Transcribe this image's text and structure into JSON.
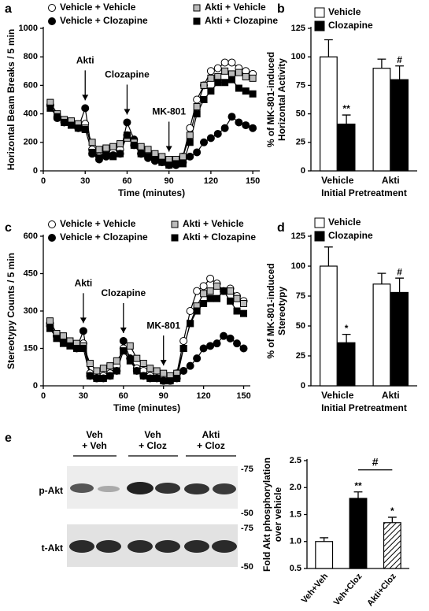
{
  "chart_data": [
    {
      "type": "line",
      "label": "a",
      "xlabel": "Time (minutes)",
      "ylabel": [
        "Horizontal Beam Breaks / 5 min"
      ],
      "x": [
        5,
        10,
        15,
        20,
        25,
        30,
        35,
        40,
        45,
        50,
        55,
        60,
        65,
        70,
        75,
        80,
        85,
        90,
        95,
        100,
        105,
        110,
        115,
        120,
        125,
        130,
        135,
        140,
        145,
        150
      ],
      "xlim": [
        0,
        155
      ],
      "xticks": [
        0,
        30,
        60,
        90,
        120,
        150
      ],
      "ylim": [
        0,
        1000
      ],
      "yticks": [
        0,
        200,
        400,
        600,
        800,
        1000
      ],
      "series": [
        {
          "name": "Vehicle + Vehicle",
          "color": "#ffffff",
          "marker": "circle",
          "values": [
            460,
            380,
            350,
            330,
            320,
            330,
            150,
            100,
            120,
            130,
            150,
            250,
            180,
            120,
            110,
            90,
            90,
            70,
            70,
            100,
            300,
            500,
            600,
            700,
            720,
            760,
            760,
            720,
            700,
            680
          ]
        },
        {
          "name": "Vehicle + Clozapine",
          "color": "#000000",
          "marker": "circle",
          "values": [
            460,
            370,
            340,
            330,
            300,
            440,
            120,
            80,
            100,
            110,
            120,
            340,
            220,
            120,
            90,
            70,
            60,
            40,
            40,
            60,
            100,
            130,
            200,
            230,
            260,
            300,
            380,
            340,
            320,
            300
          ]
        },
        {
          "name": "Akti + Vehicle",
          "color": "#bbbbbb",
          "marker": "square",
          "values": [
            480,
            400,
            360,
            350,
            330,
            300,
            200,
            150,
            160,
            170,
            190,
            230,
            200,
            170,
            150,
            120,
            100,
            80,
            80,
            100,
            250,
            450,
            600,
            650,
            660,
            700,
            680,
            690,
            660,
            650
          ]
        },
        {
          "name": "Akti + Clozapine",
          "color": "#000000",
          "marker": "square",
          "values": [
            440,
            380,
            340,
            320,
            300,
            290,
            130,
            90,
            110,
            100,
            120,
            250,
            180,
            120,
            100,
            80,
            60,
            40,
            50,
            50,
            200,
            400,
            500,
            560,
            620,
            620,
            640,
            580,
            560,
            540
          ]
        }
      ],
      "annotations": [
        {
          "text": "Akti",
          "x": 30
        },
        {
          "text": "Clozapine",
          "x": 60
        },
        {
          "text": "MK-801",
          "x": 90
        }
      ]
    },
    {
      "type": "bar",
      "label": "b",
      "xlabel": "Initial Pretreatment",
      "ylabel": [
        "% of MK-801-induced",
        "Horizontal Activity"
      ],
      "categories": [
        "Vehicle",
        "Akti"
      ],
      "ylim": [
        0,
        125
      ],
      "yticks": [
        0,
        25,
        50,
        75,
        100,
        125
      ],
      "series": [
        {
          "name": "Vehicle",
          "color": "#ffffff",
          "values": [
            100,
            90
          ],
          "errors": [
            15,
            8
          ]
        },
        {
          "name": "Clozapine",
          "color": "#000000",
          "values": [
            41,
            80
          ],
          "errors": [
            8,
            12
          ],
          "annotations": [
            "**",
            "#"
          ]
        }
      ]
    },
    {
      "type": "line",
      "label": "c",
      "xlabel": "Time (minutes)",
      "ylabel": [
        "Stereotypy Counts / 5 min"
      ],
      "x": [
        5,
        10,
        15,
        20,
        25,
        30,
        35,
        40,
        45,
        50,
        55,
        60,
        65,
        70,
        75,
        80,
        85,
        90,
        95,
        100,
        105,
        110,
        115,
        120,
        125,
        130,
        135,
        140,
        145,
        150
      ],
      "xlim": [
        0,
        155
      ],
      "xticks": [
        0,
        30,
        60,
        90,
        120,
        150
      ],
      "ylim": [
        0,
        600
      ],
      "yticks": [
        0,
        150,
        300,
        450,
        600
      ],
      "series": [
        {
          "name": "Vehicle + Vehicle",
          "color": "#ffffff",
          "marker": "circle",
          "values": [
            250,
            200,
            190,
            170,
            160,
            170,
            50,
            30,
            40,
            50,
            80,
            150,
            110,
            70,
            60,
            40,
            40,
            30,
            30,
            50,
            180,
            300,
            380,
            400,
            430,
            410,
            380,
            390,
            360,
            340
          ]
        },
        {
          "name": "Vehicle + Clozapine",
          "color": "#000000",
          "marker": "circle",
          "values": [
            240,
            200,
            180,
            170,
            150,
            220,
            40,
            30,
            30,
            40,
            60,
            180,
            110,
            60,
            40,
            30,
            30,
            20,
            20,
            30,
            60,
            80,
            110,
            150,
            160,
            170,
            200,
            190,
            170,
            150
          ]
        },
        {
          "name": "Akti + Vehicle",
          "color": "#bbbbbb",
          "marker": "square",
          "values": [
            260,
            210,
            200,
            180,
            170,
            160,
            90,
            60,
            70,
            80,
            100,
            140,
            160,
            110,
            90,
            70,
            60,
            50,
            40,
            50,
            150,
            250,
            320,
            370,
            380,
            400,
            380,
            380,
            350,
            330
          ]
        },
        {
          "name": "Akti + Clozapine",
          "color": "#000000",
          "marker": "square",
          "values": [
            230,
            190,
            170,
            160,
            150,
            150,
            40,
            30,
            30,
            40,
            60,
            140,
            100,
            60,
            40,
            30,
            30,
            20,
            20,
            30,
            150,
            250,
            300,
            330,
            350,
            350,
            380,
            340,
            300,
            290
          ]
        }
      ],
      "annotations": [
        {
          "text": "Akti",
          "x": 30
        },
        {
          "text": "Clozapine",
          "x": 60
        },
        {
          "text": "MK-801",
          "x": 90
        }
      ]
    },
    {
      "type": "bar",
      "label": "d",
      "xlabel": "Initial Pretreatment",
      "ylabel": [
        "% of MK-801-induced",
        "Stereotypy"
      ],
      "categories": [
        "Vehicle",
        "Akti"
      ],
      "ylim": [
        0,
        125
      ],
      "yticks": [
        0,
        25,
        50,
        75,
        100,
        125
      ],
      "series": [
        {
          "name": "Vehicle",
          "color": "#ffffff",
          "values": [
            100,
            85
          ],
          "errors": [
            16,
            9
          ]
        },
        {
          "name": "Clozapine",
          "color": "#000000",
          "values": [
            36,
            78
          ],
          "errors": [
            7,
            12
          ],
          "annotations": [
            "*",
            "#"
          ]
        }
      ]
    },
    {
      "type": "bar",
      "ylabel": [
        "Fold Akt phosphorylation",
        "over vehicle"
      ],
      "rotate_categories": true,
      "categories": [
        "Veh+Veh",
        "Veh+Cloz",
        "Akti+Cloz"
      ],
      "ylim": [
        0.5,
        2.5
      ],
      "yticks": [
        0.5,
        {
          "value": 1,
          "label": "1.0"
        },
        1.5,
        {
          "value": 2,
          "label": "2.0"
        },
        2.5
      ],
      "series": [
        {
          "colors": [
            "#ffffff",
            "#000000",
            "#ffffff"
          ],
          "hatch": [
            false,
            false,
            true
          ],
          "values": [
            1,
            1.8,
            1.35
          ],
          "errors": [
            0.07,
            0.12,
            0.1
          ],
          "annotations": [
            null,
            "**",
            "*"
          ]
        }
      ],
      "bracket": {
        "text": "#",
        "between": [
          1,
          2
        ]
      }
    }
  ],
  "blot": {
    "label": "e",
    "lanes": [
      [
        "Veh",
        "+ Veh"
      ],
      [
        "Veh",
        "+ Cloz"
      ],
      [
        "Akti",
        "+ Cloz"
      ]
    ],
    "rows": [
      "p-Akt",
      "t-Akt"
    ],
    "markers": [
      "-75",
      "-50",
      "-75",
      "-50"
    ]
  }
}
